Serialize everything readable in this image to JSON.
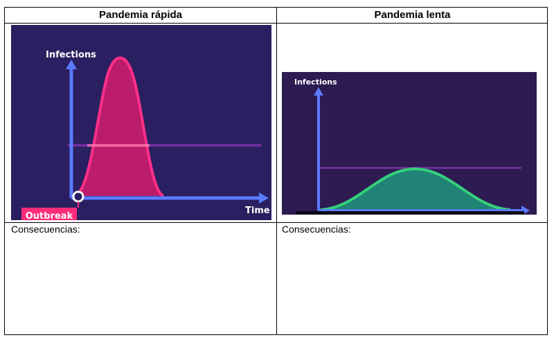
{
  "table": {
    "headers": [
      "Pandemia rápida",
      "Pandemia lenta"
    ],
    "consequences_label": "Consecuencias:"
  },
  "fast": {
    "y_axis_label": "Infections",
    "x_axis_label": "Time",
    "badge_label": "Outbreak",
    "colors": {
      "background": "#2a1f60",
      "axis": "#5b7bff",
      "curve_fill": "#d61c6e",
      "curve_stroke": "#ff2f86",
      "capacity_line": "#6d2d9a",
      "badge": "#ff2c7b"
    }
  },
  "slow": {
    "y_axis_label": "Infections",
    "colors": {
      "background": "#2e1b52",
      "axis": "#5b7bff",
      "curve_fill": "#1f8f7a",
      "curve_stroke": "#35d07a",
      "capacity_line": "#6d2d9a"
    }
  }
}
